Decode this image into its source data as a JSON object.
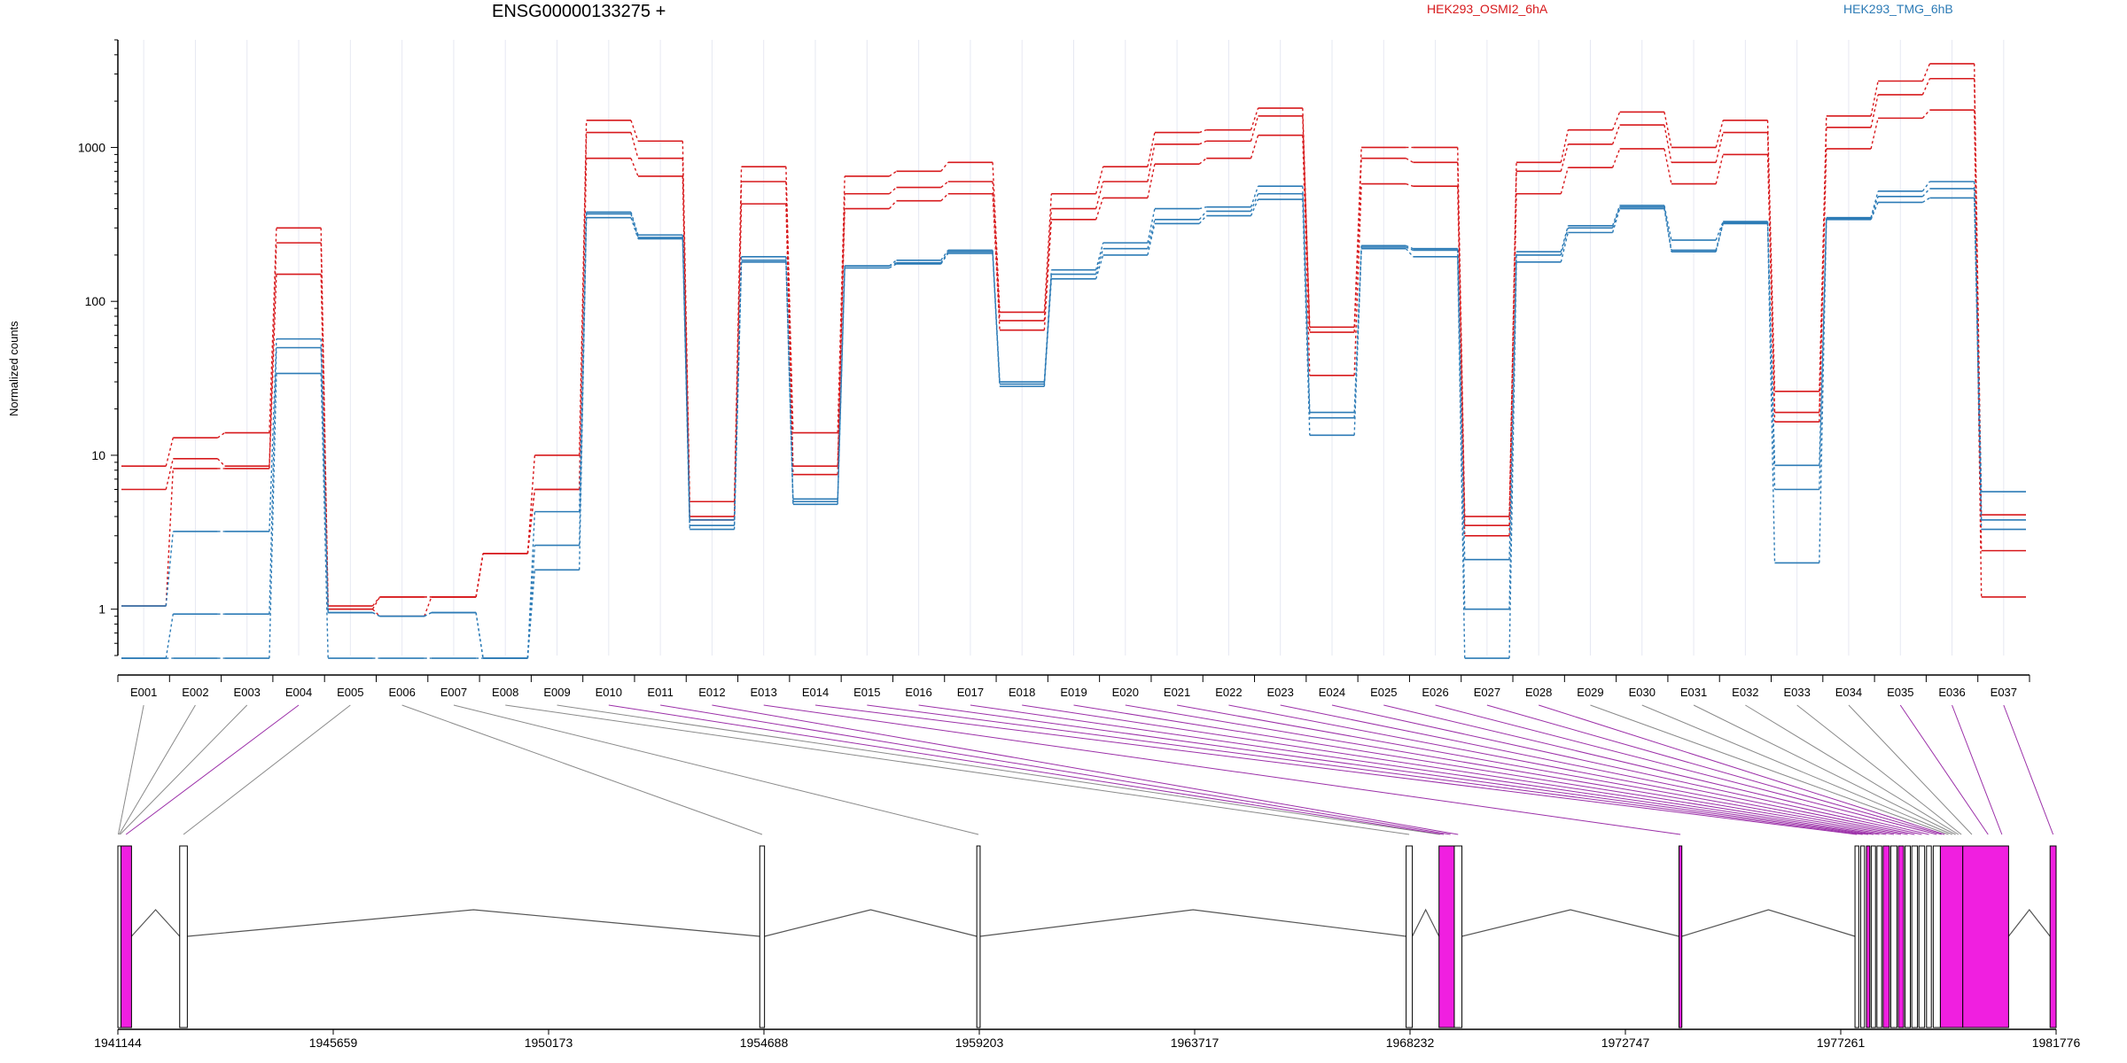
{
  "chart_data": {
    "type": "line",
    "title": "ENSG00000133275 +",
    "ylabel": "Normalized counts",
    "xlabel": "",
    "yscale": "log",
    "ylim": [
      0.5,
      5000
    ],
    "y_ticks": [
      "1",
      "10",
      "100",
      "1000"
    ],
    "grid": "vertical exon guides",
    "legend_position": "top",
    "categories": [
      "E001",
      "E002",
      "E003",
      "E004",
      "E005",
      "E006",
      "E007",
      "E008",
      "E009",
      "E010",
      "E011",
      "E012",
      "E013",
      "E014",
      "E015",
      "E016",
      "E017",
      "E018",
      "E019",
      "E020",
      "E021",
      "E022",
      "E023",
      "E024",
      "E025",
      "E026",
      "E027",
      "E028",
      "E029",
      "E030",
      "E031",
      "E032",
      "E033",
      "E034",
      "E035",
      "E036",
      "E037"
    ],
    "groups": [
      {
        "name": "HEK293_OSMI2_6hA",
        "color": "#d7191c"
      },
      {
        "name": "HEK293_TMG_6hB",
        "color": "#2c7bb6"
      }
    ],
    "series": [
      {
        "group": 0,
        "values": [
          8.5,
          13,
          14,
          300,
          1.05,
          1.2,
          1.2,
          2.3,
          10,
          1500,
          1100,
          5,
          750,
          14,
          650,
          700,
          800,
          85,
          500,
          750,
          1250,
          1300,
          1800,
          68,
          1000,
          1000,
          4,
          800,
          1300,
          1700,
          1000,
          1500,
          26,
          1600,
          2700,
          3500,
          4.1
        ]
      },
      {
        "group": 0,
        "values": [
          6,
          9.5,
          8.5,
          240,
          1.0,
          1.2,
          1.2,
          2.3,
          6,
          1250,
          850,
          4,
          600,
          8.5,
          500,
          550,
          600,
          75,
          400,
          600,
          1050,
          1100,
          1600,
          63,
          850,
          800,
          3.5,
          700,
          1050,
          1400,
          800,
          1250,
          19,
          1350,
          2200,
          2800,
          2.4
        ]
      },
      {
        "group": 0,
        "values": [
          1.05,
          8.2,
          8.2,
          150,
          1.0,
          0.9,
          1.2,
          2.3,
          6,
          850,
          650,
          3.8,
          430,
          7.5,
          400,
          450,
          500,
          65,
          340,
          470,
          780,
          850,
          1200,
          33,
          580,
          560,
          3.0,
          500,
          740,
          980,
          580,
          900,
          16.5,
          980,
          1550,
          1750,
          1.2
        ]
      },
      {
        "group": 1,
        "values": [
          1.05,
          3.2,
          3.2,
          57,
          0.95,
          0.9,
          0.95,
          0.48,
          4.3,
          380,
          270,
          3.8,
          195,
          5.2,
          170,
          185,
          215,
          30,
          160,
          240,
          400,
          410,
          560,
          19,
          230,
          220,
          2.1,
          210,
          310,
          420,
          250,
          330,
          8.6,
          350,
          520,
          600,
          5.8
        ]
      },
      {
        "group": 1,
        "values": [
          0.48,
          0.93,
          0.93,
          50,
          0.95,
          0.9,
          0.95,
          0.48,
          2.6,
          370,
          260,
          3.5,
          185,
          5.0,
          170,
          178,
          210,
          29,
          150,
          220,
          340,
          385,
          500,
          17.5,
          225,
          215,
          1.0,
          200,
          300,
          410,
          215,
          325,
          6.0,
          345,
          480,
          540,
          3.3
        ]
      },
      {
        "group": 1,
        "values": [
          0.48,
          0.48,
          0.48,
          34,
          0.48,
          0.48,
          0.48,
          0.48,
          1.8,
          350,
          255,
          3.3,
          180,
          4.8,
          165,
          175,
          205,
          28,
          140,
          200,
          320,
          360,
          460,
          13.5,
          220,
          195,
          0.48,
          180,
          280,
          400,
          210,
          320,
          2.0,
          340,
          440,
          470,
          3.8
        ]
      }
    ],
    "genomic_ticks": [
      "1941144",
      "1945659",
      "1950173",
      "1954688",
      "1959203",
      "1963717",
      "1968232",
      "1972747",
      "1977261",
      "1981776"
    ],
    "genomic_range": [
      1941144,
      1981776
    ],
    "exon_model": [
      {
        "start": 1941144,
        "end": 1941210,
        "highlight": false
      },
      {
        "start": 1941210,
        "end": 1941430,
        "highlight": true
      },
      {
        "start": 1942440,
        "end": 1942600,
        "highlight": false
      },
      {
        "start": 1954600,
        "end": 1954700,
        "highlight": false
      },
      {
        "start": 1959150,
        "end": 1959220,
        "highlight": false
      },
      {
        "start": 1968150,
        "end": 1968280,
        "highlight": false
      },
      {
        "start": 1968840,
        "end": 1969160,
        "highlight": true
      },
      {
        "start": 1969160,
        "end": 1969320,
        "highlight": false
      },
      {
        "start": 1973870,
        "end": 1973930,
        "highlight": true
      },
      {
        "start": 1977560,
        "end": 1977640,
        "highlight": false
      },
      {
        "start": 1977680,
        "end": 1977760,
        "highlight": false
      },
      {
        "start": 1977800,
        "end": 1977870,
        "highlight": true
      },
      {
        "start": 1977900,
        "end": 1977990,
        "highlight": false
      },
      {
        "start": 1978020,
        "end": 1978120,
        "highlight": false
      },
      {
        "start": 1978150,
        "end": 1978280,
        "highlight": true
      },
      {
        "start": 1978310,
        "end": 1978440,
        "highlight": false
      },
      {
        "start": 1978470,
        "end": 1978580,
        "highlight": true
      },
      {
        "start": 1978610,
        "end": 1978720,
        "highlight": false
      },
      {
        "start": 1978750,
        "end": 1978870,
        "highlight": false
      },
      {
        "start": 1978900,
        "end": 1979020,
        "highlight": false
      },
      {
        "start": 1979060,
        "end": 1979160,
        "highlight": false
      },
      {
        "start": 1979200,
        "end": 1979350,
        "highlight": false
      },
      {
        "start": 1979350,
        "end": 1979820,
        "highlight": true
      },
      {
        "start": 1979820,
        "end": 1980780,
        "highlight": true
      },
      {
        "start": 1981650,
        "end": 1981776,
        "highlight": true
      }
    ],
    "exon_bins": [
      [
        1941144,
        1941160
      ],
      [
        1941160,
        1941180
      ],
      [
        1941180,
        1941200
      ],
      [
        1941200,
        1941430
      ],
      [
        1942440,
        1942600
      ],
      [
        1954600,
        1954700
      ],
      [
        1959150,
        1959220
      ],
      [
        1968150,
        1968280
      ],
      [
        1968840,
        1968880
      ],
      [
        1968880,
        1969000
      ],
      [
        1969000,
        1969160
      ],
      [
        1969160,
        1969320
      ],
      [
        1973870,
        1973930
      ],
      [
        1977560,
        1977640
      ],
      [
        1977680,
        1977760
      ],
      [
        1977800,
        1977870
      ],
      [
        1977900,
        1977990
      ],
      [
        1978020,
        1978120
      ],
      [
        1978150,
        1978280
      ],
      [
        1978310,
        1978440
      ],
      [
        1978470,
        1978580
      ],
      [
        1978610,
        1978720
      ],
      [
        1978750,
        1978870
      ],
      [
        1978900,
        1979020
      ],
      [
        1979060,
        1979160
      ],
      [
        1979200,
        1979350
      ],
      [
        1979350,
        1979400
      ],
      [
        1979400,
        1979480
      ],
      [
        1979480,
        1979560
      ],
      [
        1979560,
        1979640
      ],
      [
        1979640,
        1979700
      ],
      [
        1979700,
        1979760
      ],
      [
        1979760,
        1979820
      ],
      [
        1979820,
        1980200
      ],
      [
        1980200,
        1980500
      ],
      [
        1980500,
        1980780
      ],
      [
        1981650,
        1981776
      ]
    ],
    "highlighted_bins": [
      "E004",
      "E010",
      "E011",
      "E012",
      "E013",
      "E014",
      "E015",
      "E016",
      "E017",
      "E018",
      "E019",
      "E020",
      "E021",
      "E022",
      "E023",
      "E024",
      "E025",
      "E026",
      "E027",
      "E028",
      "E035",
      "E036",
      "E037"
    ]
  }
}
